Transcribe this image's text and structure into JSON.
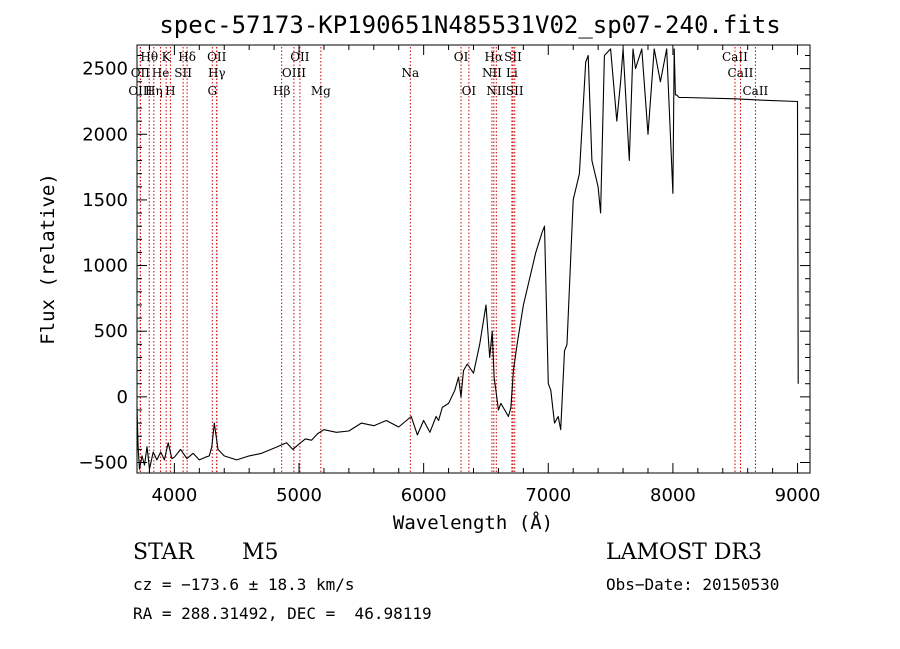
{
  "chart_data": {
    "type": "line",
    "title": "spec-57173-KP190651N485531V02_sp07-240.fits",
    "xlabel": "Wavelength (Å)",
    "ylabel": "Flux (relative)",
    "xlim": [
      3700,
      9100
    ],
    "ylim": [
      -580,
      2680
    ],
    "xticks": [
      4000,
      5000,
      6000,
      7000,
      8000,
      9000
    ],
    "yticks": [
      -500,
      0,
      500,
      1000,
      1500,
      2000,
      2500
    ],
    "grid": false,
    "legend": "none",
    "series": [
      {
        "x": [
          3700,
          3710,
          3720,
          3740,
          3760,
          3780,
          3800,
          3830,
          3860,
          3890,
          3920,
          3950,
          3980,
          4000,
          4050,
          4100,
          4150,
          4200,
          4250,
          4280,
          4300,
          4320,
          4350,
          4400,
          4500,
          4600,
          4700,
          4800,
          4900,
          4950,
          5000,
          5050,
          5100,
          5150,
          5200,
          5300,
          5400,
          5500,
          5600,
          5700,
          5800,
          5900,
          5950,
          6000,
          6050,
          6100,
          6120,
          6150,
          6200,
          6250,
          6280,
          6300,
          6320,
          6350,
          6400,
          6450,
          6500,
          6530,
          6550,
          6565,
          6580,
          6600,
          6620,
          6650,
          6680,
          6700,
          6720,
          6750,
          6800,
          6850,
          6900,
          6950,
          6970,
          7000,
          7020,
          7050,
          7080,
          7100,
          7130,
          7150,
          7200,
          7250,
          7300,
          7320,
          7350,
          7400,
          7420,
          7450,
          7500,
          7550,
          7580,
          7600,
          7650,
          7680,
          7700,
          7750,
          7800,
          7850,
          7900,
          7950,
          8000,
          8010,
          8020,
          8030,
          8050,
          8100,
          8500,
          8700,
          9000,
          9005
        ],
        "y": [
          -80,
          -400,
          -550,
          -450,
          -520,
          -380,
          -550,
          -420,
          -480,
          -420,
          -480,
          -350,
          -470,
          -460,
          -400,
          -470,
          -430,
          -480,
          -460,
          -450,
          -380,
          -200,
          -400,
          -450,
          -480,
          -450,
          -430,
          -390,
          -350,
          -400,
          -360,
          -320,
          -330,
          -280,
          -250,
          -270,
          -260,
          -200,
          -220,
          -180,
          -230,
          -150,
          -290,
          -180,
          -270,
          -150,
          -180,
          -80,
          -50,
          50,
          150,
          0,
          200,
          250,
          180,
          400,
          700,
          300,
          500,
          150,
          50,
          -100,
          -50,
          -100,
          -150,
          -80,
          200,
          400,
          700,
          900,
          1100,
          1250,
          1300,
          100,
          50,
          -200,
          -150,
          -250,
          350,
          400,
          1500,
          1700,
          2550,
          2600,
          1800,
          1600,
          1400,
          2600,
          2650,
          2100,
          2400,
          2650,
          1800,
          2650,
          2500,
          2650,
          2000,
          2650,
          2400,
          2650,
          1550,
          2650,
          2300,
          2300,
          2280,
          2280,
          2270,
          2260,
          2250,
          100
        ]
      }
    ],
    "spectral_lines": [
      {
        "label": "Hθ",
        "x": 3798,
        "row": 0
      },
      {
        "label": "K",
        "x": 3934,
        "row": 0
      },
      {
        "label": "Hδ",
        "x": 4102,
        "row": 0
      },
      {
        "label": "OII",
        "x": 4340,
        "row": 0
      },
      {
        "label": "OII",
        "x": 5007,
        "row": 0
      },
      {
        "label": "OI",
        "x": 6300,
        "row": 0
      },
      {
        "label": "Hα",
        "x": 6563,
        "row": 0
      },
      {
        "label": "SII",
        "x": 6717,
        "row": 0
      },
      {
        "label": "CaII",
        "x": 8498,
        "row": 0
      },
      {
        "label": "OII",
        "x": 3727,
        "row": 1
      },
      {
        "label": "He",
        "x": 3889,
        "row": 1
      },
      {
        "label": "SII",
        "x": 4070,
        "row": 1
      },
      {
        "label": "Hγ",
        "x": 4340,
        "row": 1
      },
      {
        "label": "OIII",
        "x": 4959,
        "row": 1
      },
      {
        "label": "Na",
        "x": 5893,
        "row": 1
      },
      {
        "label": "NII",
        "x": 6548,
        "row": 1
      },
      {
        "label": "Li",
        "x": 6708,
        "row": 1
      },
      {
        "label": "CaII",
        "x": 8542,
        "row": 1
      },
      {
        "label": "OIII",
        "x": 3727,
        "row": 2
      },
      {
        "label": "Hη",
        "x": 3835,
        "row": 2
      },
      {
        "label": "H",
        "x": 3968,
        "row": 2
      },
      {
        "label": "G",
        "x": 4304,
        "row": 2
      },
      {
        "label": "Hβ",
        "x": 4861,
        "row": 2
      },
      {
        "label": "Mg",
        "x": 5175,
        "row": 2
      },
      {
        "label": "OI",
        "x": 6363,
        "row": 2
      },
      {
        "label": "NII",
        "x": 6583,
        "row": 2
      },
      {
        "label": "SII",
        "x": 6731,
        "row": 2
      },
      {
        "label": "CaII",
        "x": 8662,
        "row": 2
      }
    ],
    "line_color": "#000000",
    "marker_color": "#cc0000"
  },
  "info": {
    "object_class": "STAR",
    "subclass": "M5",
    "survey": "LAMOST DR3",
    "cz": "cz = −173.6 ± 18.3 km/s",
    "obs_date": "Obs−Date: 20150530",
    "coords": "RA = 288.31492, DEC =  46.98119"
  }
}
